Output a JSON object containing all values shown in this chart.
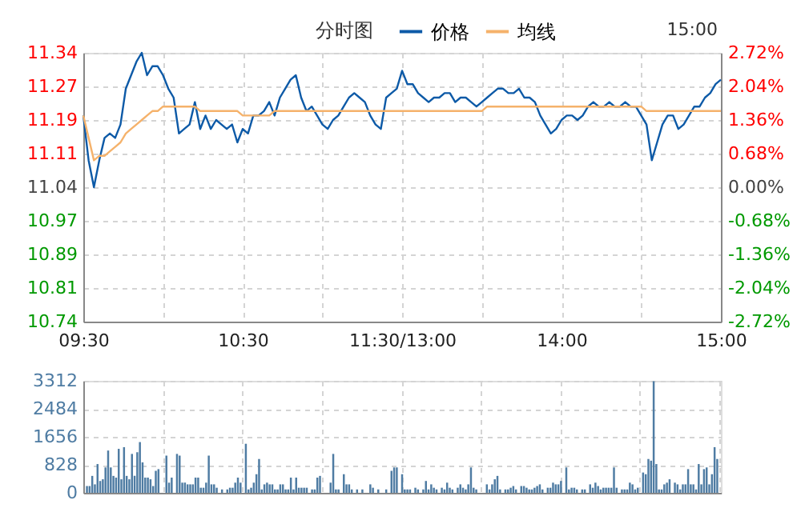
{
  "chart_data": [
    {
      "type": "line",
      "title": "分时图",
      "annotations": [
        "15:00"
      ],
      "categories": [
        "09:30",
        null,
        null,
        null,
        null,
        null,
        null,
        null,
        null,
        null,
        null,
        null,
        null,
        null,
        null,
        null,
        null,
        null,
        null,
        null,
        null,
        null,
        null,
        null,
        null,
        null,
        null,
        null,
        null,
        null,
        "10:30",
        null,
        null,
        null,
        null,
        null,
        null,
        null,
        null,
        null,
        null,
        null,
        null,
        null,
        null,
        null,
        null,
        null,
        null,
        null,
        null,
        null,
        null,
        null,
        null,
        null,
        null,
        null,
        null,
        null,
        "11:30/13:00",
        null,
        null,
        null,
        null,
        null,
        null,
        null,
        null,
        null,
        null,
        null,
        null,
        null,
        null,
        null,
        null,
        null,
        null,
        null,
        null,
        null,
        null,
        null,
        null,
        null,
        null,
        null,
        null,
        null,
        "14:00",
        null,
        null,
        null,
        null,
        null,
        null,
        null,
        null,
        null,
        null,
        null,
        null,
        null,
        null,
        null,
        null,
        null,
        null,
        null,
        null,
        null,
        null,
        null,
        null,
        null,
        null,
        null,
        null,
        null,
        "15:00"
      ],
      "series": [
        {
          "name": "价格",
          "color": "#0d5aa7",
          "values": [
            11.2,
            11.1,
            11.04,
            11.1,
            11.15,
            11.16,
            11.15,
            11.18,
            11.26,
            11.29,
            11.32,
            11.34,
            11.29,
            11.31,
            11.31,
            11.29,
            11.26,
            11.24,
            11.16,
            11.17,
            11.18,
            11.23,
            11.17,
            11.2,
            11.17,
            11.19,
            11.18,
            11.17,
            11.18,
            11.14,
            11.17,
            11.16,
            11.2,
            11.2,
            11.21,
            11.23,
            11.2,
            11.24,
            11.26,
            11.28,
            11.29,
            11.24,
            11.21,
            11.22,
            11.2,
            11.18,
            11.17,
            11.19,
            11.2,
            11.22,
            11.24,
            11.25,
            11.24,
            11.23,
            11.2,
            11.18,
            11.17,
            11.24,
            11.25,
            11.26,
            11.3,
            11.27,
            11.27,
            11.25,
            11.24,
            11.23,
            11.24,
            11.24,
            11.25,
            11.25,
            11.23,
            11.24,
            11.24,
            11.23,
            11.22,
            11.23,
            11.24,
            11.25,
            11.26,
            11.26,
            11.25,
            11.25,
            11.26,
            11.24,
            11.24,
            11.23,
            11.2,
            11.18,
            11.16,
            11.17,
            11.19,
            11.2,
            11.2,
            11.19,
            11.2,
            11.22,
            11.23,
            11.22,
            11.22,
            11.23,
            11.22,
            11.22,
            11.23,
            11.22,
            11.22,
            11.2,
            11.18,
            11.1,
            11.14,
            11.18,
            11.2,
            11.2,
            11.17,
            11.18,
            11.2,
            11.22,
            11.22,
            11.24,
            11.25,
            11.27,
            11.28
          ]
        },
        {
          "name": "均线",
          "color": "#f5b26b",
          "values": [
            11.2,
            11.15,
            11.1,
            11.11,
            11.11,
            11.12,
            11.13,
            11.14,
            11.16,
            11.17,
            11.18,
            11.19,
            11.2,
            11.21,
            11.21,
            11.22,
            11.22,
            11.22,
            11.22,
            11.22,
            11.22,
            11.22,
            11.21,
            11.21,
            11.21,
            11.21,
            11.21,
            11.21,
            11.21,
            11.21,
            11.2,
            11.2,
            11.2,
            11.2,
            11.2,
            11.2,
            11.21,
            11.21,
            11.21,
            11.21,
            11.21,
            11.21,
            11.21,
            11.21,
            11.21,
            11.21,
            11.21,
            11.21,
            11.21,
            11.21,
            11.21,
            11.21,
            11.21,
            11.21,
            11.21,
            11.21,
            11.21,
            11.21,
            11.21,
            11.21,
            11.21,
            11.21,
            11.21,
            11.21,
            11.21,
            11.21,
            11.21,
            11.21,
            11.21,
            11.21,
            11.21,
            11.21,
            11.21,
            11.21,
            11.21,
            11.21,
            11.22,
            11.22,
            11.22,
            11.22,
            11.22,
            11.22,
            11.22,
            11.22,
            11.22,
            11.22,
            11.22,
            11.22,
            11.22,
            11.22,
            11.22,
            11.22,
            11.22,
            11.22,
            11.22,
            11.22,
            11.22,
            11.22,
            11.22,
            11.22,
            11.22,
            11.22,
            11.22,
            11.22,
            11.22,
            11.22,
            11.21,
            11.21,
            11.21,
            11.21,
            11.21,
            11.21,
            11.21,
            11.21,
            11.21,
            11.21,
            11.21,
            11.21,
            11.21,
            11.21,
            11.21
          ]
        }
      ],
      "ylim": [
        10.74,
        11.34
      ],
      "yticks": [
        10.74,
        {
          "value": 10.815,
          "label": "10.81"
        },
        10.89,
        {
          "value": 10.965,
          "label": "10.97"
        },
        11.04,
        {
          "value": 11.115,
          "label": "11.11"
        },
        11.19,
        {
          "value": 11.265,
          "label": "11.27"
        },
        11.34
      ],
      "y2lim": [
        -2.72,
        2.72
      ],
      "y2ticks": [
        {
          "value": -2.72,
          "label": "-2.72%"
        },
        {
          "value": -2.04,
          "label": "-2.04%"
        },
        {
          "value": -1.36,
          "label": "-1.36%"
        },
        {
          "value": -0.68,
          "label": "-0.68%"
        },
        {
          "value": 0,
          "label": "0.00%"
        },
        {
          "value": 0.68,
          "label": "0.68%"
        },
        {
          "value": 1.36,
          "label": "1.36%"
        },
        {
          "value": 2.04,
          "label": "2.04%"
        },
        {
          "value": 2.72,
          "label": "2.72%"
        }
      ],
      "grid": true,
      "legend": "top right"
    },
    {
      "type": "bar",
      "color": "#4f7ca3",
      "categories": [
        null,
        null,
        null,
        null,
        null,
        null,
        null,
        null,
        null,
        null,
        null,
        null,
        null,
        null,
        null,
        null,
        null,
        null,
        null,
        null,
        null,
        null,
        null,
        null,
        null,
        null,
        null,
        null,
        null,
        null,
        null,
        null,
        null,
        null,
        null,
        null,
        null,
        null,
        null,
        null,
        null,
        null,
        null,
        null,
        null,
        null,
        null,
        null,
        null,
        null,
        null,
        null,
        null,
        null,
        null,
        null,
        null,
        null,
        null,
        null,
        null,
        null,
        null,
        null,
        null,
        null,
        null,
        null,
        null,
        null,
        null,
        null,
        null,
        null,
        null,
        null,
        null,
        null,
        null,
        null,
        null,
        null,
        null,
        null,
        null,
        null,
        null,
        null,
        null,
        null,
        null,
        null,
        null,
        null,
        null,
        null,
        null,
        null,
        null,
        null,
        null,
        null,
        null,
        null,
        null,
        null,
        null,
        null,
        null,
        null,
        null,
        null,
        null,
        null,
        null,
        null,
        null,
        null,
        null,
        null,
        null,
        null,
        null,
        null,
        null,
        null,
        null,
        null,
        null,
        null,
        null,
        null,
        null,
        null,
        null,
        null,
        null,
        null,
        null,
        null,
        null,
        null,
        null,
        null,
        null,
        null,
        null,
        null,
        null,
        null,
        null,
        null,
        null,
        null,
        null,
        null,
        null,
        null,
        null,
        null,
        null,
        null,
        null,
        null,
        null,
        null,
        null,
        null,
        null,
        null,
        null,
        null,
        null,
        null,
        null,
        null,
        null,
        null,
        null,
        null,
        null,
        null,
        null,
        null,
        null,
        null,
        null,
        null,
        null,
        null,
        null,
        null,
        null,
        null,
        null,
        null,
        null,
        null,
        null,
        null,
        null,
        null,
        null,
        null,
        null,
        null,
        null,
        null,
        null,
        null,
        null,
        null,
        null,
        null,
        null,
        null,
        null,
        null,
        null,
        null,
        null,
        null,
        null,
        null,
        null,
        null,
        null,
        null,
        null,
        null,
        null,
        null,
        null,
        null,
        null,
        null,
        null,
        null,
        null,
        null,
        null
      ],
      "values": [
        null,
        200,
        200,
        500,
        250,
        850,
        350,
        400,
        750,
        1250,
        750,
        500,
        450,
        1300,
        400,
        1350,
        500,
        400,
        1150,
        500,
        1200,
        1500,
        900,
        450,
        450,
        400,
        200,
        650,
        700,
        null,
        null,
        1100,
        300,
        450,
        null,
        1150,
        1100,
        300,
        300,
        250,
        250,
        250,
        450,
        450,
        150,
        150,
        300,
        1100,
        250,
        250,
        150,
        null,
        100,
        null,
        100,
        150,
        150,
        300,
        450,
        300,
        null,
        1450,
        100,
        150,
        300,
        550,
        1000,
        100,
        250,
        300,
        250,
        250,
        100,
        100,
        250,
        250,
        100,
        100,
        450,
        100,
        450,
        150,
        150,
        150,
        150,
        null,
        100,
        100,
        450,
        500,
        null,
        null,
        null,
        300,
        1150,
        100,
        100,
        null,
        550,
        250,
        250,
        100,
        null,
        100,
        null,
        100,
        null,
        null,
        250,
        150,
        null,
        100,
        null,
        null,
        100,
        null,
        650,
        750,
        750,
        null,
        550,
        100,
        100,
        100,
        null,
        150,
        100,
        null,
        100,
        350,
        100,
        250,
        150,
        100,
        null,
        150,
        100,
        300,
        150,
        100,
        null,
        150,
        250,
        150,
        100,
        250,
        750,
        150,
        100,
        null,
        null,
        null,
        250,
        100,
        250,
        400,
        500,
        100,
        null,
        100,
        100,
        150,
        200,
        100,
        null,
        200,
        200,
        150,
        100,
        100,
        150,
        200,
        250,
        100,
        null,
        150,
        150,
        300,
        250,
        250,
        350,
        null,
        750,
        100,
        150,
        150,
        100,
        null,
        100,
        100,
        null,
        250,
        150,
        300,
        200,
        100,
        150,
        150,
        150,
        150,
        750,
        150,
        null,
        100,
        100,
        100,
        300,
        250,
        100,
        150,
        null,
        600,
        550,
        1000,
        950,
        3300,
        850,
        100,
        100,
        250,
        300,
        400,
        null,
        300,
        250,
        100,
        250,
        250,
        700,
        250,
        250,
        100,
        850,
        250,
        700,
        750,
        250,
        550,
        1350,
        1000,
        null
      ],
      "ylim": [
        0,
        3312
      ],
      "yticks": [
        0,
        828,
        1656,
        2484,
        3312
      ],
      "grid": true,
      "tick_labels": "y"
    }
  ]
}
